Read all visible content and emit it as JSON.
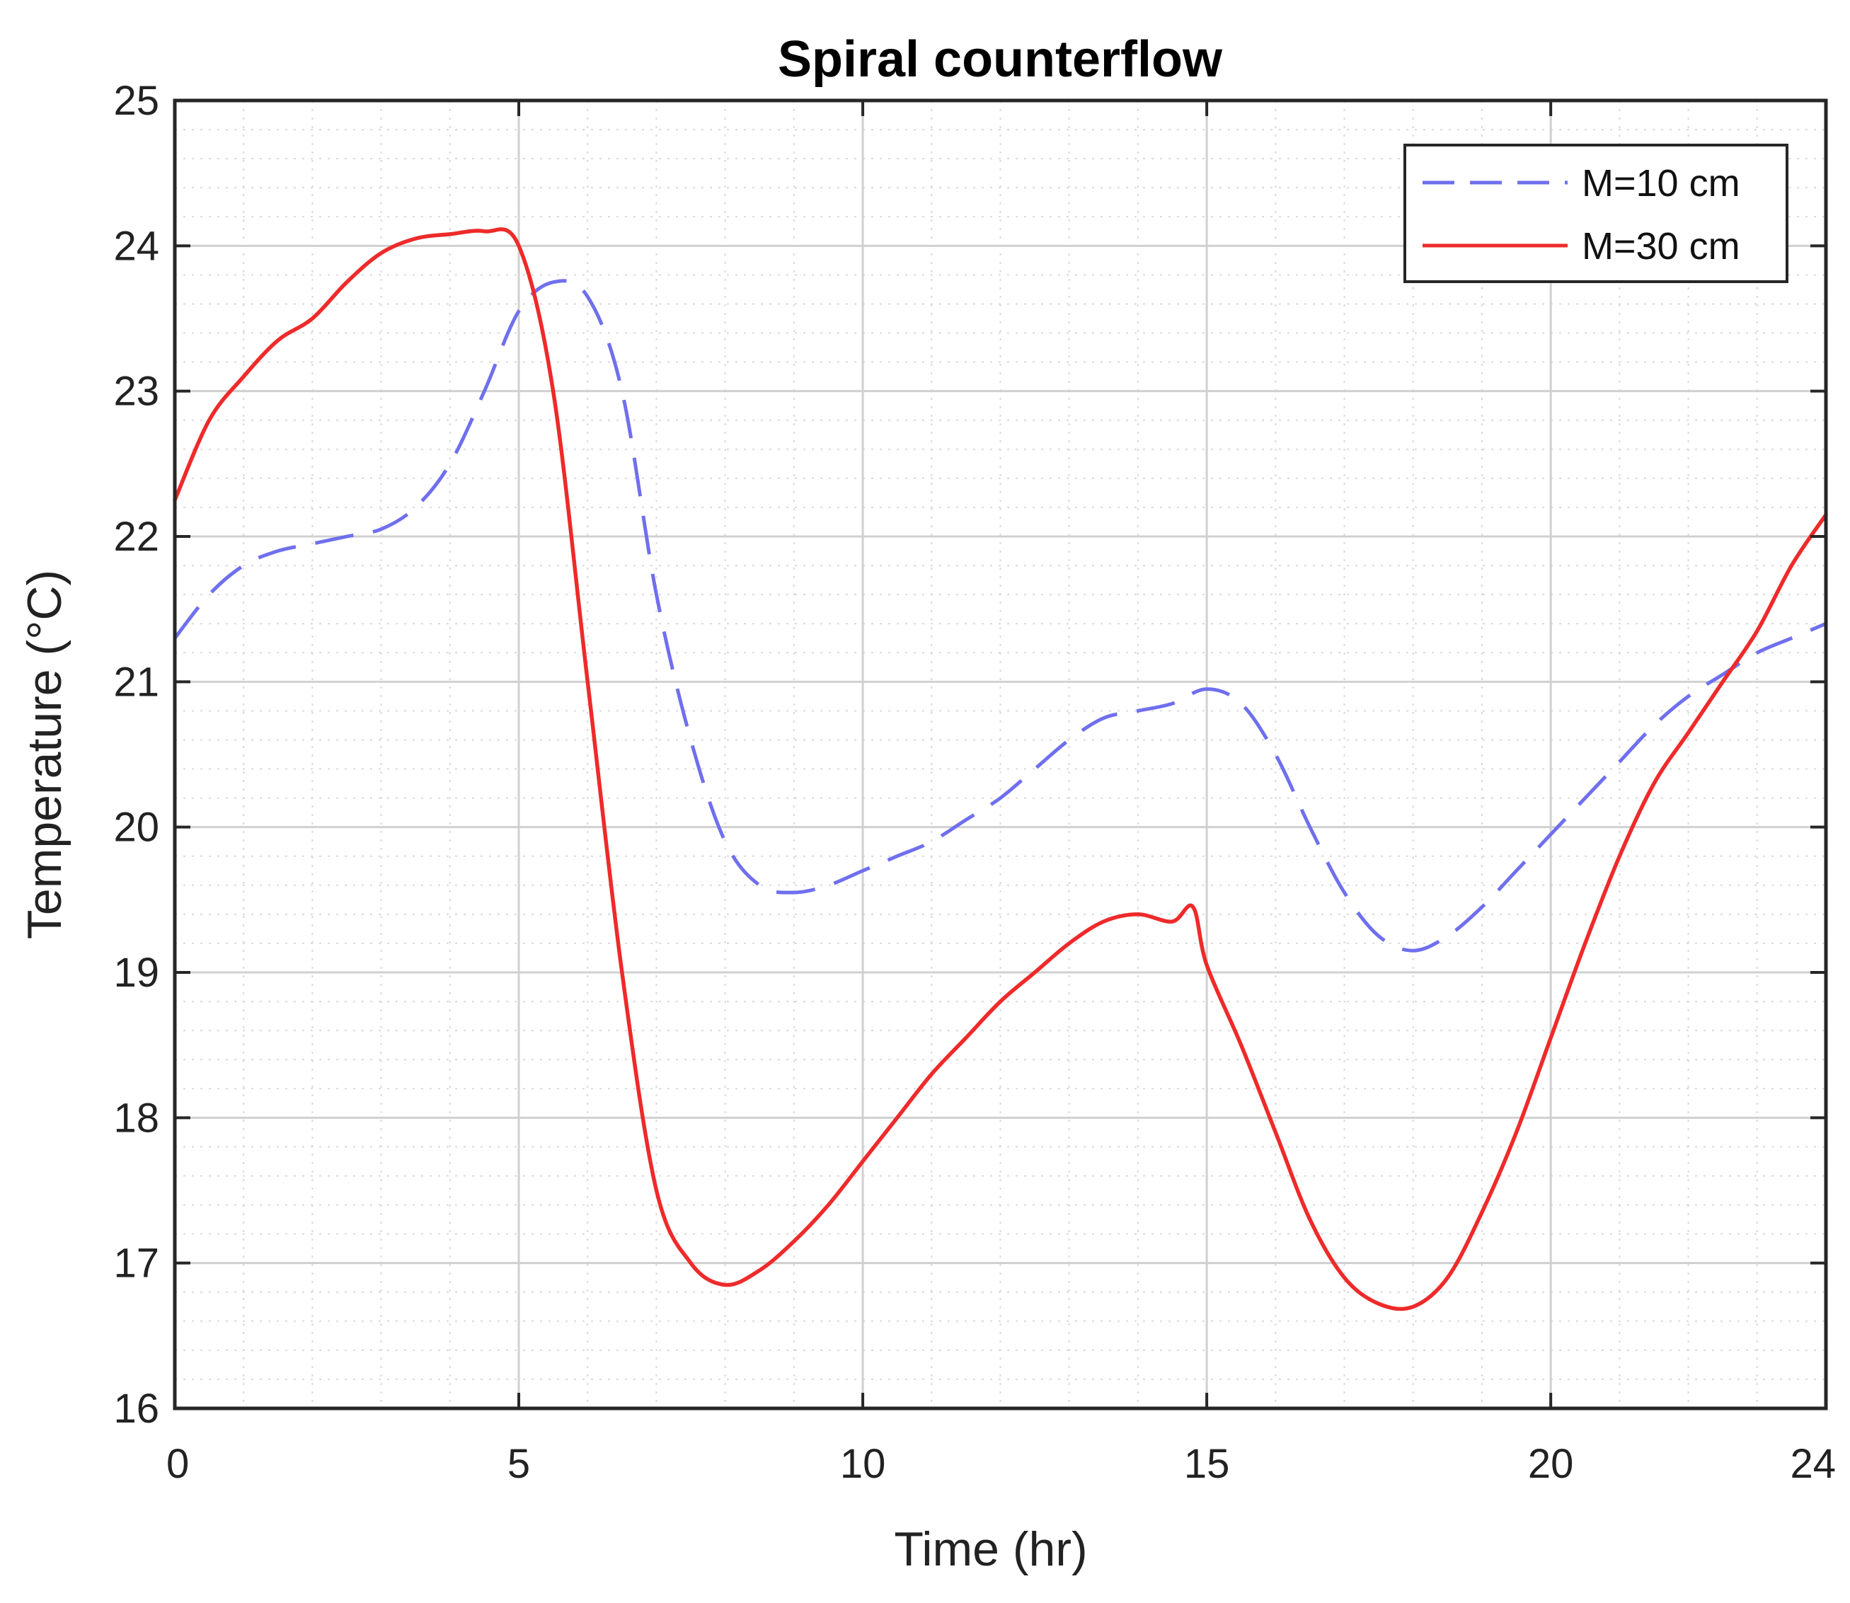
{
  "chart_data": {
    "type": "line",
    "title": "Spiral counterflow",
    "xlabel": "Time (hr)",
    "ylabel": "Temperature (°C)",
    "xlim": [
      0,
      24
    ],
    "ylim": [
      16,
      25
    ],
    "xticks": [
      0,
      5,
      10,
      15,
      20,
      24
    ],
    "yticks": [
      16,
      17,
      18,
      19,
      20,
      21,
      22,
      23,
      24,
      25
    ],
    "grid": true,
    "legend_position": "top-right",
    "series": [
      {
        "name": "M=10 cm",
        "style": "dashed",
        "color": "#6f6fee",
        "x": [
          0,
          0.5,
          1,
          1.5,
          2,
          2.5,
          3,
          3.5,
          4,
          4.5,
          5,
          5.5,
          6,
          6.5,
          7,
          7.5,
          8,
          8.5,
          9,
          9.5,
          10,
          10.5,
          11,
          11.5,
          12,
          12.5,
          13,
          13.5,
          14,
          14.5,
          15,
          15.5,
          16,
          16.5,
          17,
          17.5,
          18,
          18.5,
          19,
          19.5,
          20,
          20.5,
          21,
          21.5,
          22,
          22.5,
          23,
          23.5,
          24
        ],
        "y": [
          21.3,
          21.6,
          21.8,
          21.9,
          21.95,
          22.0,
          22.05,
          22.2,
          22.5,
          23.0,
          23.55,
          23.75,
          23.65,
          23.0,
          21.6,
          20.6,
          19.9,
          19.6,
          19.55,
          19.6,
          19.7,
          19.8,
          19.9,
          20.05,
          20.2,
          20.4,
          20.6,
          20.75,
          20.8,
          20.85,
          20.95,
          20.85,
          20.5,
          20.0,
          19.55,
          19.25,
          19.15,
          19.25,
          19.45,
          19.7,
          19.95,
          20.2,
          20.45,
          20.7,
          20.9,
          21.05,
          21.2,
          21.3,
          21.4
        ]
      },
      {
        "name": "M=30 cm",
        "style": "solid",
        "color": "#ee2a2a",
        "x": [
          0,
          0.5,
          1,
          1.5,
          2,
          2.5,
          3,
          3.5,
          4,
          4.5,
          5,
          5.5,
          6,
          6.5,
          7,
          7.5,
          8,
          8.5,
          9,
          9.5,
          10,
          10.5,
          11,
          11.5,
          12,
          12.5,
          13,
          13.5,
          14,
          14.5,
          14.8,
          15,
          15.5,
          16,
          16.5,
          17,
          17.5,
          18,
          18.5,
          19,
          19.5,
          20,
          20.5,
          21,
          21.5,
          22,
          22.5,
          23,
          23.5,
          24
        ],
        "y": [
          22.25,
          22.8,
          23.1,
          23.35,
          23.5,
          23.75,
          23.95,
          24.05,
          24.08,
          24.1,
          24.0,
          23.0,
          21.0,
          19.0,
          17.5,
          17.0,
          16.85,
          16.95,
          17.15,
          17.4,
          17.7,
          18.0,
          18.3,
          18.55,
          18.8,
          19.0,
          19.2,
          19.35,
          19.4,
          19.35,
          19.45,
          19.05,
          18.5,
          17.9,
          17.3,
          16.9,
          16.72,
          16.7,
          16.9,
          17.35,
          17.9,
          18.55,
          19.2,
          19.8,
          20.3,
          20.65,
          21.0,
          21.35,
          21.8,
          22.15
        ]
      }
    ]
  }
}
